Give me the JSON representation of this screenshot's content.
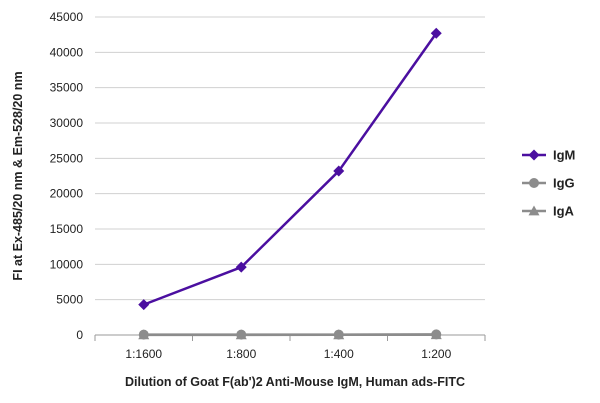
{
  "chart_data": {
    "type": "line",
    "categories": [
      "1:1600",
      "1:800",
      "1:400",
      "1:200"
    ],
    "series": [
      {
        "name": "IgM",
        "values": [
          4300,
          9600,
          23200,
          42700
        ],
        "color": "#4B0FA0",
        "marker": "diamond"
      },
      {
        "name": "IgG",
        "values": [
          50,
          50,
          60,
          80
        ],
        "color": "#8C8C8C",
        "marker": "circle"
      },
      {
        "name": "IgA",
        "values": [
          20,
          20,
          30,
          40
        ],
        "color": "#8C8C8C",
        "marker": "triangle"
      }
    ],
    "xlabel": "Dilution of Goat F(ab')2 Anti-Mouse IgM, Human ads-FITC",
    "ylabel": "FI at Ex-485/20 nm & Em-528/20 nm",
    "ylim": [
      0,
      45000
    ],
    "yticks": [
      0,
      5000,
      10000,
      15000,
      20000,
      25000,
      30000,
      35000,
      40000,
      45000
    ],
    "grid": true,
    "legend": "right"
  }
}
